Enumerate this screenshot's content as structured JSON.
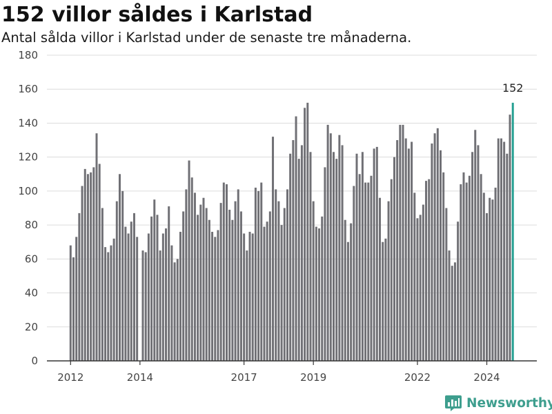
{
  "title": "152 villor såldes i Karlstad",
  "subtitle": "Antal sålda villor i Karlstad under de senaste tre månaderna.",
  "brand": {
    "name": "Newsworthy",
    "color": "#3e9e8e",
    "icon": "bar-chart-logo-icon"
  },
  "colors": {
    "bar": "#707075",
    "highlight": "#25a092",
    "grid": "#dcdcdc",
    "axis": "#333333"
  },
  "chart_data": {
    "type": "bar",
    "x_start": "2012-01",
    "x_end": "2024-12",
    "ylim": [
      0,
      180
    ],
    "y_ticks": [
      0,
      20,
      40,
      60,
      80,
      100,
      120,
      140,
      160,
      180
    ],
    "x_tick_labels": [
      {
        "label": "2012",
        "date": "2012-01"
      },
      {
        "label": "2014",
        "date": "2014-01"
      },
      {
        "label": "2017",
        "date": "2017-01"
      },
      {
        "label": "2019",
        "date": "2019-01"
      },
      {
        "label": "2022",
        "date": "2022-01"
      },
      {
        "label": "2024",
        "date": "2024-01"
      }
    ],
    "grid": true,
    "values": [
      68,
      61,
      73,
      87,
      103,
      113,
      110,
      111,
      114,
      134,
      116,
      90,
      67,
      64,
      68,
      72,
      94,
      110,
      100,
      79,
      75,
      82,
      87,
      73,
      null,
      65,
      64,
      75,
      85,
      95,
      86,
      65,
      75,
      78,
      91,
      68,
      58,
      60,
      76,
      88,
      101,
      118,
      108,
      99,
      86,
      92,
      96,
      90,
      83,
      76,
      73,
      77,
      93,
      105,
      104,
      89,
      83,
      94,
      101,
      88,
      75,
      65,
      76,
      75,
      102,
      100,
      105,
      79,
      82,
      88,
      132,
      101,
      94,
      80,
      90,
      101,
      122,
      130,
      144,
      119,
      127,
      149,
      152,
      123,
      94,
      79,
      78,
      85,
      114,
      139,
      134,
      123,
      119,
      133,
      127,
      83,
      70,
      81,
      103,
      122,
      110,
      123,
      105,
      105,
      109,
      125,
      126,
      96,
      70,
      72,
      94,
      107,
      120,
      130,
      139,
      139,
      131,
      125,
      129,
      99,
      84,
      86,
      92,
      106,
      107,
      128,
      134,
      137,
      124,
      111,
      90,
      65,
      56,
      58,
      82,
      104,
      111,
      105,
      109,
      123,
      136,
      127,
      110,
      99,
      87,
      96,
      95,
      102,
      131,
      131,
      129,
      122,
      145,
      152
    ],
    "highlight": {
      "date": "2024-10",
      "value": 152,
      "label": "152"
    }
  }
}
